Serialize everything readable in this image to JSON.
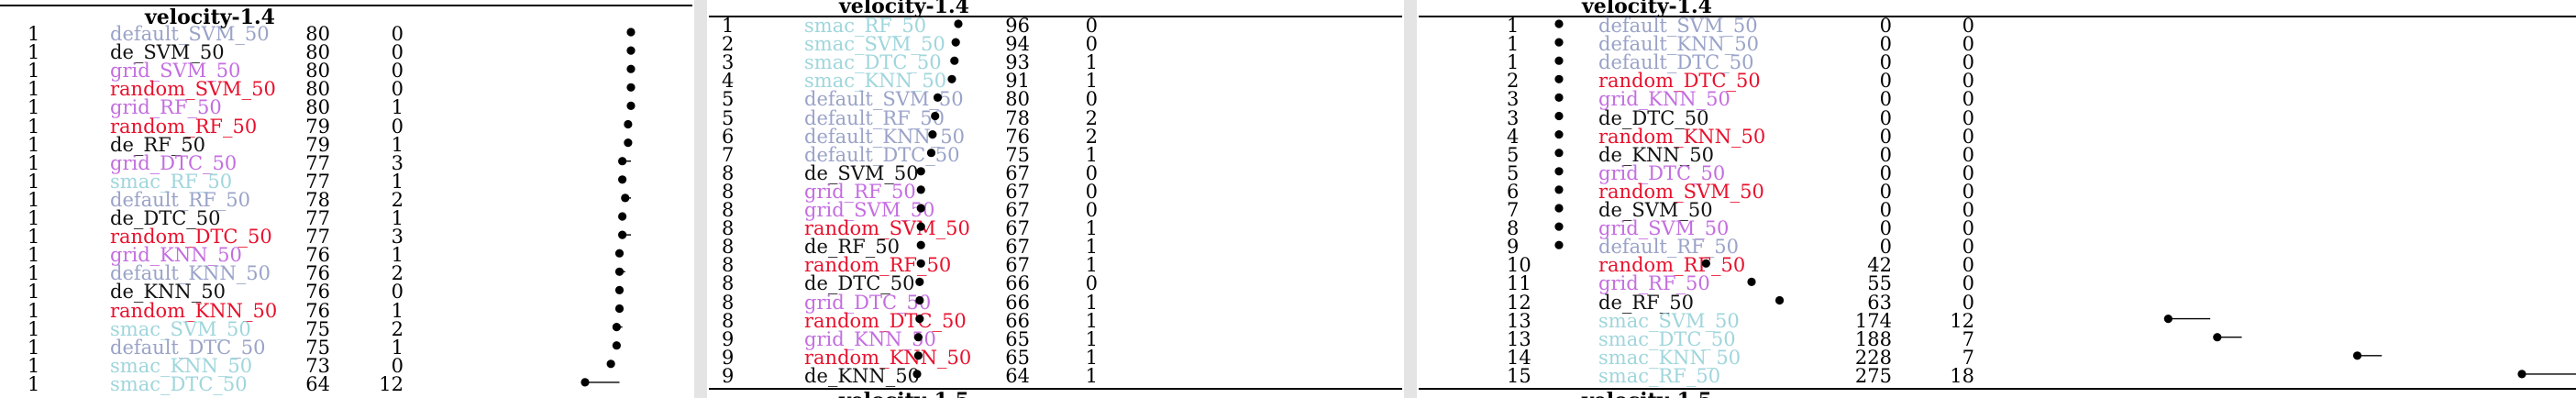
{
  "colors": {
    "default": "#9aa3c8",
    "de": "#111111",
    "grid": "#c46ee0",
    "random": "#e8112d",
    "smac": "#9fd6dc"
  },
  "panels": [
    {
      "title": "velocity-1.4",
      "rows": [
        {
          "rank": "1",
          "name": "default_SVM_50",
          "family": "default",
          "v1": "80",
          "v2": "0",
          "x": 80,
          "err": 0
        },
        {
          "rank": "1",
          "name": "de_SVM_50",
          "family": "de",
          "v1": "80",
          "v2": "0",
          "x": 80,
          "err": 0
        },
        {
          "rank": "1",
          "name": "grid_SVM_50",
          "family": "grid",
          "v1": "80",
          "v2": "0",
          "x": 80,
          "err": 0
        },
        {
          "rank": "1",
          "name": "random_SVM_50",
          "family": "random",
          "v1": "80",
          "v2": "0",
          "x": 80,
          "err": 0
        },
        {
          "rank": "1",
          "name": "grid_RF_50",
          "family": "grid",
          "v1": "80",
          "v2": "1",
          "x": 80,
          "err": 1
        },
        {
          "rank": "1",
          "name": "random_RF_50",
          "family": "random",
          "v1": "79",
          "v2": "0",
          "x": 79,
          "err": 0
        },
        {
          "rank": "1",
          "name": "de_RF_50",
          "family": "de",
          "v1": "79",
          "v2": "1",
          "x": 79,
          "err": 1
        },
        {
          "rank": "1",
          "name": "grid_DTC_50",
          "family": "grid",
          "v1": "77",
          "v2": "3",
          "x": 77,
          "err": 3
        },
        {
          "rank": "1",
          "name": "smac_RF_50",
          "family": "smac",
          "v1": "77",
          "v2": "1",
          "x": 77,
          "err": 1
        },
        {
          "rank": "1",
          "name": "default_RF_50",
          "family": "default",
          "v1": "78",
          "v2": "2",
          "x": 78,
          "err": 2
        },
        {
          "rank": "1",
          "name": "de_DTC_50",
          "family": "de",
          "v1": "77",
          "v2": "1",
          "x": 77,
          "err": 1
        },
        {
          "rank": "1",
          "name": "random_DTC_50",
          "family": "random",
          "v1": "77",
          "v2": "3",
          "x": 77,
          "err": 3
        },
        {
          "rank": "1",
          "name": "grid_KNN_50",
          "family": "grid",
          "v1": "76",
          "v2": "1",
          "x": 76,
          "err": 1
        },
        {
          "rank": "1",
          "name": "default_KNN_50",
          "family": "default",
          "v1": "76",
          "v2": "2",
          "x": 76,
          "err": 2
        },
        {
          "rank": "1",
          "name": "de_KNN_50",
          "family": "de",
          "v1": "76",
          "v2": "0",
          "x": 76,
          "err": 0
        },
        {
          "rank": "1",
          "name": "random_KNN_50",
          "family": "random",
          "v1": "76",
          "v2": "1",
          "x": 76,
          "err": 1
        },
        {
          "rank": "1",
          "name": "smac_SVM_50",
          "family": "smac",
          "v1": "75",
          "v2": "2",
          "x": 75,
          "err": 2
        },
        {
          "rank": "1",
          "name": "default_DTC_50",
          "family": "default",
          "v1": "75",
          "v2": "1",
          "x": 75,
          "err": 1
        },
        {
          "rank": "1",
          "name": "smac_KNN_50",
          "family": "smac",
          "v1": "73",
          "v2": "0",
          "x": 73,
          "err": 0
        },
        {
          "rank": "1",
          "name": "smac_DTC_50",
          "family": "smac",
          "v1": "64",
          "v2": "12",
          "x": 64,
          "err": 12
        }
      ]
    },
    {
      "title": "velocity-1.4",
      "bottom_title": "velocity-1.5",
      "rows": [
        {
          "rank": "1",
          "name": "smac_RF_50",
          "family": "smac",
          "v1": "96",
          "v2": "0",
          "x": 96,
          "err": 0
        },
        {
          "rank": "2",
          "name": "smac_SVM_50",
          "family": "smac",
          "v1": "94",
          "v2": "0",
          "x": 94,
          "err": 0
        },
        {
          "rank": "3",
          "name": "smac_DTC_50",
          "family": "smac",
          "v1": "93",
          "v2": "1",
          "x": 93,
          "err": 1
        },
        {
          "rank": "4",
          "name": "smac_KNN_50",
          "family": "smac",
          "v1": "91",
          "v2": "1",
          "x": 91,
          "err": 1
        },
        {
          "rank": "5",
          "name": "default_SVM_50",
          "family": "default",
          "v1": "80",
          "v2": "0",
          "x": 80,
          "err": 0
        },
        {
          "rank": "5",
          "name": "default_RF_50",
          "family": "default",
          "v1": "78",
          "v2": "2",
          "x": 78,
          "err": 2
        },
        {
          "rank": "6",
          "name": "default_KNN_50",
          "family": "default",
          "v1": "76",
          "v2": "2",
          "x": 76,
          "err": 2
        },
        {
          "rank": "7",
          "name": "default_DTC_50",
          "family": "default",
          "v1": "75",
          "v2": "1",
          "x": 75,
          "err": 1
        },
        {
          "rank": "8",
          "name": "de_SVM_50",
          "family": "de",
          "v1": "67",
          "v2": "0",
          "x": 67,
          "err": 0
        },
        {
          "rank": "8",
          "name": "grid_RF_50",
          "family": "grid",
          "v1": "67",
          "v2": "0",
          "x": 67,
          "err": 0
        },
        {
          "rank": "8",
          "name": "grid_SVM_50",
          "family": "grid",
          "v1": "67",
          "v2": "0",
          "x": 67,
          "err": 0
        },
        {
          "rank": "8",
          "name": "random_SVM_50",
          "family": "random",
          "v1": "67",
          "v2": "1",
          "x": 67,
          "err": 1
        },
        {
          "rank": "8",
          "name": "de_RF_50",
          "family": "de",
          "v1": "67",
          "v2": "1",
          "x": 67,
          "err": 1
        },
        {
          "rank": "8",
          "name": "random_RF_50",
          "family": "random",
          "v1": "67",
          "v2": "1",
          "x": 67,
          "err": 1
        },
        {
          "rank": "8",
          "name": "de_DTC_50",
          "family": "de",
          "v1": "66",
          "v2": "0",
          "x": 66,
          "err": 0
        },
        {
          "rank": "8",
          "name": "grid_DTC_50",
          "family": "grid",
          "v1": "66",
          "v2": "1",
          "x": 66,
          "err": 1
        },
        {
          "rank": "8",
          "name": "random_DTC_50",
          "family": "random",
          "v1": "66",
          "v2": "1",
          "x": 66,
          "err": 1
        },
        {
          "rank": "9",
          "name": "grid_KNN_50",
          "family": "grid",
          "v1": "65",
          "v2": "1",
          "x": 65,
          "err": 1
        },
        {
          "rank": "9",
          "name": "random_KNN_50",
          "family": "random",
          "v1": "65",
          "v2": "1",
          "x": 65,
          "err": 1
        },
        {
          "rank": "9",
          "name": "de_KNN_50",
          "family": "de",
          "v1": "64",
          "v2": "1",
          "x": 64,
          "err": 1
        }
      ]
    },
    {
      "title": "velocity-1.4",
      "bottom_title": "velocity-1.5",
      "rows": [
        {
          "rank": "1",
          "name": "default_SVM_50",
          "family": "default",
          "v1": "0",
          "v2": "0",
          "x": 0,
          "err": 0
        },
        {
          "rank": "1",
          "name": "default_KNN_50",
          "family": "default",
          "v1": "0",
          "v2": "0",
          "x": 0,
          "err": 0
        },
        {
          "rank": "1",
          "name": "default_DTC_50",
          "family": "default",
          "v1": "0",
          "v2": "0",
          "x": 0,
          "err": 0
        },
        {
          "rank": "2",
          "name": "random_DTC_50",
          "family": "random",
          "v1": "0",
          "v2": "0",
          "x": 0,
          "err": 0
        },
        {
          "rank": "3",
          "name": "grid_KNN_50",
          "family": "grid",
          "v1": "0",
          "v2": "0",
          "x": 0,
          "err": 0
        },
        {
          "rank": "3",
          "name": "de_DTC_50",
          "family": "de",
          "v1": "0",
          "v2": "0",
          "x": 0,
          "err": 0
        },
        {
          "rank": "4",
          "name": "random_KNN_50",
          "family": "random",
          "v1": "0",
          "v2": "0",
          "x": 0,
          "err": 0
        },
        {
          "rank": "5",
          "name": "de_KNN_50",
          "family": "de",
          "v1": "0",
          "v2": "0",
          "x": 0,
          "err": 0
        },
        {
          "rank": "5",
          "name": "grid_DTC_50",
          "family": "grid",
          "v1": "0",
          "v2": "0",
          "x": 0,
          "err": 0
        },
        {
          "rank": "6",
          "name": "random_SVM_50",
          "family": "random",
          "v1": "0",
          "v2": "0",
          "x": 0,
          "err": 0
        },
        {
          "rank": "7",
          "name": "de_SVM_50",
          "family": "de",
          "v1": "0",
          "v2": "0",
          "x": 0,
          "err": 0
        },
        {
          "rank": "8",
          "name": "grid_SVM_50",
          "family": "grid",
          "v1": "0",
          "v2": "0",
          "x": 0,
          "err": 0
        },
        {
          "rank": "9",
          "name": "default_RF_50",
          "family": "default",
          "v1": "0",
          "v2": "0",
          "x": 0,
          "err": 0
        },
        {
          "rank": "10",
          "name": "random_RF_50",
          "family": "random",
          "v1": "42",
          "v2": "0",
          "x": 42,
          "err": 0
        },
        {
          "rank": "11",
          "name": "grid_RF_50",
          "family": "grid",
          "v1": "55",
          "v2": "0",
          "x": 55,
          "err": 0
        },
        {
          "rank": "12",
          "name": "de_RF_50",
          "family": "de",
          "v1": "63",
          "v2": "0",
          "x": 63,
          "err": 0
        },
        {
          "rank": "13",
          "name": "smac_SVM_50",
          "family": "smac",
          "v1": "174",
          "v2": "12",
          "x": 174,
          "err": 12
        },
        {
          "rank": "13",
          "name": "smac_DTC_50",
          "family": "smac",
          "v1": "188",
          "v2": "7",
          "x": 188,
          "err": 7
        },
        {
          "rank": "14",
          "name": "smac_KNN_50",
          "family": "smac",
          "v1": "228",
          "v2": "7",
          "x": 228,
          "err": 7
        },
        {
          "rank": "15",
          "name": "smac_RF_50",
          "family": "smac",
          "v1": "275",
          "v2": "18",
          "x": 275,
          "err": 18
        }
      ]
    }
  ],
  "chart_data": [
    {
      "type": "scatter",
      "xlim": [
        60,
        85
      ],
      "x": [
        80,
        80,
        80,
        80,
        80,
        79,
        79,
        77,
        77,
        78,
        77,
        77,
        76,
        76,
        76,
        76,
        75,
        75,
        73,
        64
      ],
      "err": [
        0,
        0,
        0,
        0,
        1,
        0,
        1,
        3,
        1,
        2,
        1,
        3,
        1,
        2,
        0,
        1,
        2,
        1,
        0,
        12
      ]
    },
    {
      "type": "scatter",
      "xlim": [
        60,
        100
      ],
      "x": [
        96,
        94,
        93,
        91,
        80,
        78,
        76,
        75,
        67,
        67,
        67,
        67,
        67,
        67,
        66,
        66,
        66,
        65,
        65,
        64
      ],
      "err": [
        0,
        0,
        1,
        1,
        0,
        2,
        2,
        1,
        0,
        0,
        0,
        1,
        1,
        1,
        0,
        1,
        1,
        1,
        1,
        1
      ]
    },
    {
      "type": "scatter",
      "xlim": [
        0,
        300
      ],
      "x": [
        0,
        0,
        0,
        0,
        0,
        0,
        0,
        0,
        0,
        0,
        0,
        0,
        0,
        42,
        55,
        63,
        174,
        188,
        228,
        275
      ],
      "err": [
        0,
        0,
        0,
        0,
        0,
        0,
        0,
        0,
        0,
        0,
        0,
        0,
        0,
        0,
        0,
        0,
        12,
        7,
        7,
        18
      ]
    }
  ]
}
